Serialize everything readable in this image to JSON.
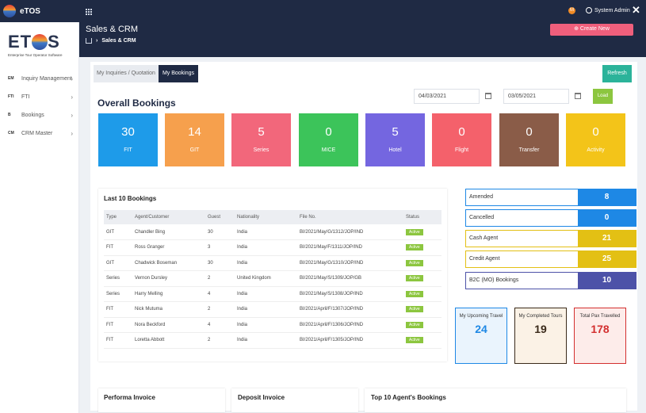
{
  "app": {
    "name": "eTOS",
    "user": "System Admin",
    "notification_badge": "M"
  },
  "page": {
    "title": "Sales & CRM",
    "breadcrumb": "Sales & CRM",
    "create_label": "Create New"
  },
  "brand": {
    "word_left": "ET",
    "word_right": "S",
    "tagline": "Enterprise Tour Operator Software"
  },
  "sidebar": {
    "items": [
      {
        "code": "EM",
        "label": "Inquiry Management"
      },
      {
        "code": "FTI",
        "label": "FTI"
      },
      {
        "code": "B",
        "label": "Bookings"
      },
      {
        "code": "CM",
        "label": "CRM Master"
      }
    ]
  },
  "tabs": {
    "inquiries": "My Inquiries / Quotation",
    "bookings": "My Bookings"
  },
  "toolbar": {
    "refresh": "Refresh",
    "load": "Load",
    "date_from": "04/03/2021",
    "date_to": "03/05/2021"
  },
  "overall": {
    "title": "Overall Bookings",
    "kpis": [
      {
        "value": "30",
        "label": "FIT",
        "color": "#1e9be9"
      },
      {
        "value": "14",
        "label": "GIT",
        "color": "#f6a04d"
      },
      {
        "value": "5",
        "label": "Series",
        "color": "#f2677b"
      },
      {
        "value": "0",
        "label": "MICE",
        "color": "#3cc45a"
      },
      {
        "value": "5",
        "label": "Hotel",
        "color": "#7466e0"
      },
      {
        "value": "0",
        "label": "Flight",
        "color": "#f4616b"
      },
      {
        "value": "0",
        "label": "Transfer",
        "color": "#8a5c48"
      },
      {
        "value": "0",
        "label": "Activity",
        "color": "#f3c419"
      }
    ]
  },
  "last_bookings": {
    "title": "Last 10 Bookings",
    "columns": [
      "Type",
      "Agent/Customer",
      "Guest",
      "Nationality",
      "File No.",
      "Status"
    ],
    "rows": [
      [
        "GIT",
        "Chandler Bing",
        "30",
        "India",
        "BI/2021/May/G/1312/JOP/IND",
        "Active"
      ],
      [
        "FIT",
        "Ross Granger",
        "3",
        "India",
        "BI/2021/May/F/1311/JOP/IND",
        "Active"
      ],
      [
        "GIT",
        "Chadwick Boseman",
        "30",
        "India",
        "BI/2021/May/G/1310/JOP/IND",
        "Active"
      ],
      [
        "Series",
        "Vernon Dursley",
        "2",
        "United Kingdom",
        "BI/2021/May/S/1309/JOP/GB",
        "Active"
      ],
      [
        "Series",
        "Harry Melling",
        "4",
        "India",
        "BI/2021/May/S/1308/JOP/IND",
        "Active"
      ],
      [
        "FIT",
        "Nick Mutuma",
        "2",
        "India",
        "BI/2021/April/F/1307/JOP/IND",
        "Active"
      ],
      [
        "FIT",
        "Nora Beckford",
        "4",
        "India",
        "BI/2021/April/F/1306/JOP/IND",
        "Active"
      ],
      [
        "FIT",
        "Loretta Abbott",
        "2",
        "India",
        "BI/2021/April/F/1305/JOP/IND",
        "Active"
      ]
    ]
  },
  "status_counts": [
    {
      "label": "Amended",
      "value": "8",
      "color": "#1e88e5"
    },
    {
      "label": "Cancelled",
      "value": "0",
      "color": "#1e88e5"
    },
    {
      "label": "Cash Agent",
      "value": "21",
      "color": "#e3c014"
    },
    {
      "label": "Credit Agent",
      "value": "25",
      "color": "#e3c014"
    },
    {
      "label": "B2C (MO) Bookings",
      "value": "10",
      "color": "#4d52a8"
    }
  ],
  "tiles": [
    {
      "title": "My Upcoming Travel",
      "value": "24",
      "color": "#1e88e5",
      "bg": "#eaf4fd"
    },
    {
      "title": "My Completed Tours",
      "value": "19",
      "color": "#3a2a1a",
      "bg": "#fbf2e6"
    },
    {
      "title": "Total Pax Travelled",
      "value": "178",
      "color": "#d32f2f",
      "bg": "#fdecea"
    }
  ],
  "bottom": {
    "performa": "Performa Invoice",
    "deposit": "Deposit Invoice",
    "top_agents": "Top 10 Agent's Bookings"
  }
}
